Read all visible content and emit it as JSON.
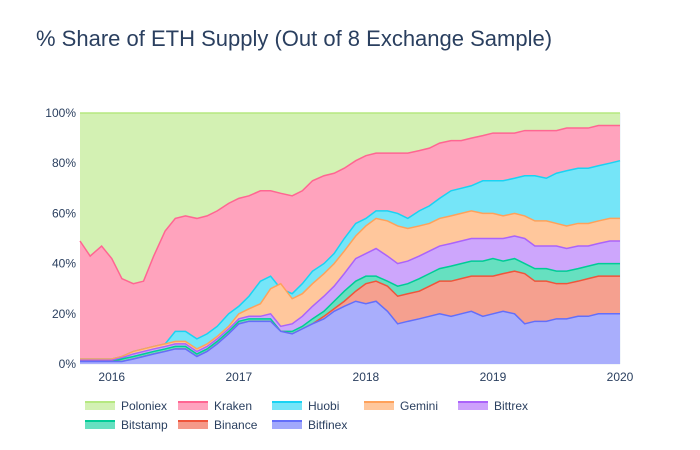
{
  "chart_data": {
    "type": "area",
    "title": "% Share of ETH Supply (Out of 8 Exchange Sample)",
    "xlabel": "",
    "ylabel": "",
    "x": [
      2015.75,
      2015.83,
      2015.92,
      2016.0,
      2016.08,
      2016.17,
      2016.25,
      2016.33,
      2016.42,
      2016.5,
      2016.58,
      2016.67,
      2016.75,
      2016.83,
      2016.92,
      2017.0,
      2017.08,
      2017.17,
      2017.25,
      2017.33,
      2017.42,
      2017.5,
      2017.58,
      2017.67,
      2017.75,
      2017.83,
      2017.92,
      2018.0,
      2018.08,
      2018.17,
      2018.25,
      2018.33,
      2018.42,
      2018.5,
      2018.58,
      2018.67,
      2018.75,
      2018.83,
      2018.92,
      2019.0,
      2019.08,
      2019.17,
      2019.25,
      2019.33,
      2019.42,
      2019.5,
      2019.58,
      2019.67,
      2019.75,
      2019.83,
      2019.92,
      2020.0
    ],
    "series": [
      {
        "name": "Bitfinex",
        "color": "#636efa",
        "fill": "#a9aefc",
        "values": [
          1,
          1,
          1,
          1,
          1,
          2,
          3,
          4,
          5,
          6,
          6,
          3,
          5,
          8,
          12,
          16,
          17,
          17,
          17,
          13,
          12,
          14,
          16,
          18,
          21,
          23,
          25,
          24,
          25,
          21,
          16,
          17,
          18,
          19,
          20,
          19,
          20,
          21,
          19,
          20,
          21,
          20,
          16,
          17,
          17,
          18,
          18,
          19,
          19,
          20,
          20,
          20
        ]
      },
      {
        "name": "Binance",
        "color": "#ef553b",
        "fill": "#f5a08f",
        "values": [
          1,
          1,
          1,
          1,
          1,
          2,
          3,
          4,
          5,
          6,
          6,
          3,
          5,
          8,
          12,
          16,
          17,
          17,
          17,
          13,
          12,
          14,
          16,
          19,
          22,
          25,
          29,
          32,
          33,
          31,
          27,
          28,
          29,
          31,
          33,
          33,
          34,
          35,
          35,
          35,
          36,
          37,
          36,
          33,
          33,
          32,
          32,
          33,
          34,
          35,
          35,
          35
        ]
      },
      {
        "name": "Bitstamp",
        "color": "#00cc96",
        "fill": "#66e0c0",
        "values": [
          1,
          1,
          1,
          1,
          2,
          3,
          4,
          5,
          6,
          7,
          7,
          4,
          6,
          9,
          13,
          17,
          18,
          18,
          18,
          13,
          13,
          15,
          18,
          21,
          25,
          29,
          33,
          35,
          35,
          33,
          31,
          32,
          34,
          36,
          38,
          39,
          40,
          41,
          41,
          42,
          41,
          42,
          40,
          38,
          38,
          37,
          37,
          38,
          39,
          40,
          40,
          40
        ]
      },
      {
        "name": "Bittrex",
        "color": "#ab63fa",
        "fill": "#cda6fc",
        "values": [
          1.5,
          1.5,
          1.5,
          1.5,
          2.5,
          4,
          5,
          6,
          7,
          8,
          8,
          5,
          7,
          10,
          14,
          18,
          19,
          19,
          20,
          15,
          16,
          19,
          23,
          27,
          31,
          36,
          42,
          44,
          46,
          43,
          40,
          41,
          43,
          45,
          47,
          48,
          49,
          50,
          50,
          50,
          50,
          51,
          50,
          47,
          47,
          47,
          46,
          47,
          47,
          48,
          49,
          49
        ]
      },
      {
        "name": "Gemini",
        "color": "#ffa15a",
        "fill": "#ffc79c",
        "values": [
          2,
          2,
          2,
          2,
          3,
          5,
          6,
          7,
          8,
          9,
          9,
          6,
          8,
          11,
          15,
          20,
          22,
          24,
          30,
          32,
          26,
          28,
          32,
          36,
          40,
          45,
          51,
          55,
          58,
          57,
          55,
          54,
          55,
          56,
          58,
          59,
          60,
          61,
          60,
          60,
          59,
          60,
          59,
          57,
          57,
          56,
          55,
          56,
          56,
          57,
          58,
          58
        ]
      },
      {
        "name": "Huobi",
        "color": "#19d3f3",
        "fill": "#75e5f8",
        "values": [
          2,
          2,
          2,
          2,
          3,
          5,
          6,
          7,
          8,
          13,
          13,
          10,
          12,
          15,
          20,
          23,
          27,
          33,
          35,
          30,
          28,
          32,
          37,
          40,
          44,
          50,
          56,
          58,
          61,
          61,
          60,
          58,
          61,
          63,
          66,
          69,
          70,
          71,
          73,
          73,
          73,
          74,
          75,
          75,
          74,
          76,
          77,
          78,
          78,
          79,
          80,
          81
        ]
      },
      {
        "name": "Kraken",
        "color": "#ff6692",
        "fill": "#ffa3bd",
        "values": [
          49,
          43,
          47,
          42,
          34,
          32,
          33,
          43,
          53,
          58,
          59,
          58,
          59,
          61,
          64,
          66,
          67,
          69,
          69,
          68,
          67,
          69,
          73,
          75,
          76,
          78,
          81,
          83,
          84,
          84,
          84,
          84,
          85,
          86,
          88,
          89,
          89,
          90,
          91,
          92,
          92,
          92,
          93,
          93,
          93,
          93,
          94,
          94,
          94,
          95,
          95,
          95
        ]
      },
      {
        "name": "Poloniex",
        "color": "#b6e880",
        "fill": "#d3f1b3",
        "values": [
          100,
          100,
          100,
          100,
          100,
          100,
          100,
          100,
          100,
          100,
          100,
          100,
          100,
          100,
          100,
          100,
          100,
          100,
          100,
          100,
          100,
          100,
          100,
          100,
          100,
          100,
          100,
          100,
          100,
          100,
          100,
          100,
          100,
          100,
          100,
          100,
          100,
          100,
          100,
          100,
          100,
          100,
          100,
          100,
          100,
          100,
          100,
          100,
          100,
          100,
          100,
          100
        ]
      }
    ],
    "xlim": [
      2015.75,
      2020.0
    ],
    "ylim": [
      0,
      100
    ],
    "x_ticks": [
      2016,
      2017,
      2018,
      2019,
      2020
    ],
    "x_tick_labels": [
      "2016",
      "2017",
      "2018",
      "2019",
      "2020"
    ],
    "y_ticks": [
      0,
      20,
      40,
      60,
      80,
      100
    ],
    "y_tick_labels": [
      "0%",
      "20%",
      "40%",
      "60%",
      "80%",
      "100%"
    ],
    "legend": [
      {
        "label": "Poloniex",
        "color": "#b6e880"
      },
      {
        "label": "Kraken",
        "color": "#ff6692"
      },
      {
        "label": "Huobi",
        "color": "#19d3f3"
      },
      {
        "label": "Gemini",
        "color": "#ffa15a"
      },
      {
        "label": "Bittrex",
        "color": "#ab63fa"
      },
      {
        "label": "Bitstamp",
        "color": "#00cc96"
      },
      {
        "label": "Binance",
        "color": "#ef553b"
      },
      {
        "label": "Bitfinex",
        "color": "#636efa"
      }
    ],
    "legend_position": "bottom",
    "grid": true
  }
}
